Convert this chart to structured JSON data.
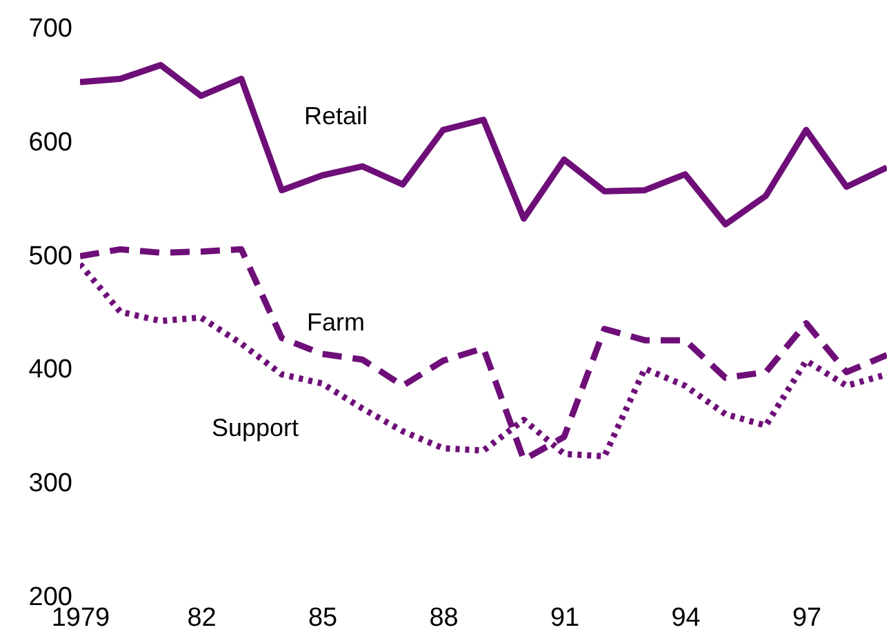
{
  "chart_data": {
    "type": "line",
    "x": [
      1979,
      1980,
      1981,
      1982,
      1983,
      1984,
      1985,
      1986,
      1987,
      1988,
      1989,
      1990,
      1991,
      1992,
      1993,
      1994,
      1995,
      1996,
      1997,
      1998,
      1999
    ],
    "series": [
      {
        "name": "Retail",
        "color": "#6e0e78",
        "line_style": "solid",
        "values": [
          652,
          655,
          667,
          640,
          655,
          557,
          570,
          578,
          562,
          610,
          619,
          532,
          584,
          556,
          557,
          571,
          527,
          552,
          610,
          560,
          577
        ]
      },
      {
        "name": "Farm",
        "color": "#6e0e78",
        "line_style": "dashed",
        "values": [
          499,
          505,
          502,
          503,
          505,
          427,
          413,
          408,
          385,
          407,
          418,
          320,
          340,
          435,
          425,
          425,
          392,
          397,
          440,
          397,
          412
        ]
      },
      {
        "name": "Support",
        "color": "#6e0e78",
        "line_style": "dotted",
        "values": [
          492,
          450,
          442,
          445,
          422,
          395,
          387,
          365,
          345,
          330,
          328,
          355,
          325,
          323,
          400,
          385,
          360,
          350,
          407,
          385,
          395
        ]
      }
    ],
    "xlim": [
      1979,
      1999
    ],
    "xticks": [
      1979,
      {
        "value": 1982,
        "label": "82"
      },
      {
        "value": 1985,
        "label": "85"
      },
      {
        "value": 1988,
        "label": "88"
      },
      {
        "value": 1991,
        "label": "91"
      },
      {
        "value": 1994,
        "label": "94"
      },
      {
        "value": 1997,
        "label": "97"
      }
    ],
    "ylim": [
      200,
      700
    ],
    "yticks": [
      200,
      300,
      400,
      500,
      600,
      700
    ],
    "grid": false,
    "marker": "none"
  }
}
